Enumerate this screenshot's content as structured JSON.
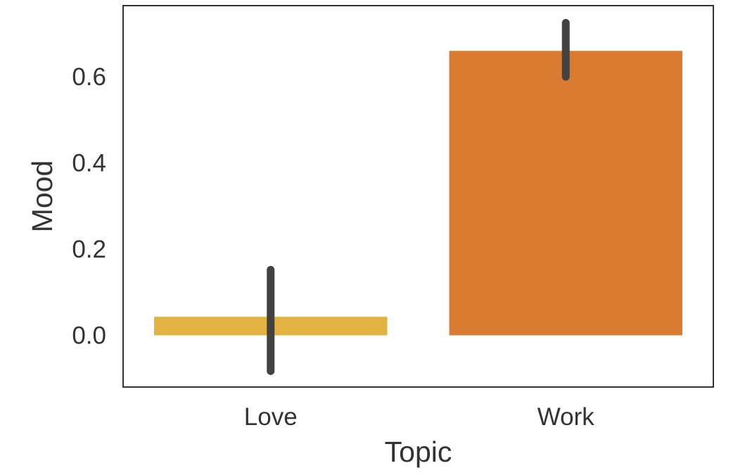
{
  "chart_data": {
    "type": "bar",
    "title": "",
    "xlabel": "Topic",
    "ylabel": "Mood",
    "categories": [
      "Love",
      "Work"
    ],
    "values": [
      0.043,
      0.66
    ],
    "error_bars": [
      {
        "low": -0.083,
        "high": 0.152
      },
      {
        "low": 0.6,
        "high": 0.725
      }
    ],
    "ylim": [
      -0.12,
      0.765
    ],
    "yticks": [
      0.0,
      0.2,
      0.4,
      0.6
    ],
    "ytick_labels": [
      "0.0",
      "0.2",
      "0.4",
      "0.6"
    ],
    "grid": false,
    "legend": "none",
    "colors": [
      "#e3b341",
      "#d97b30"
    ],
    "errorbar_color": "#424242",
    "frame_color": "#333333"
  }
}
